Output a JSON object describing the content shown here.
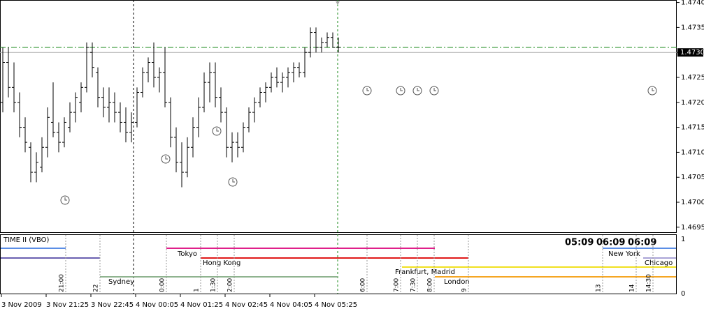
{
  "chart_data": {
    "type": "ohlc",
    "color": "#000000",
    "categories": [
      "3 Nov 2009",
      null,
      null,
      null,
      null,
      null,
      null,
      null,
      "3 Nov 21:25",
      null,
      null,
      null,
      null,
      null,
      null,
      null,
      "3 Nov 22:45",
      null,
      null,
      null,
      null,
      null,
      null,
      null,
      "4 Nov 00:05",
      null,
      null,
      null,
      null,
      null,
      null,
      null,
      "4 Nov 01:25",
      null,
      null,
      null,
      null,
      null,
      null,
      null,
      "4 Nov 02:45",
      null,
      null,
      null,
      null,
      null,
      null,
      null,
      "4 Nov 04:05",
      null,
      null,
      null,
      null,
      null,
      null,
      null,
      "4 Nov 05:25",
      null,
      null,
      null,
      null
    ],
    "open": [
      1.472,
      1.4728,
      1.4723,
      1.472,
      1.4715,
      1.4711,
      1.4706,
      1.4707,
      1.4711,
      1.4716,
      1.4714,
      1.4712,
      1.4715,
      1.4718,
      1.472,
      1.4723,
      1.473,
      1.4726,
      1.4721,
      1.4719,
      1.472,
      1.4718,
      1.4716,
      1.4714,
      1.4716,
      1.4722,
      1.4726,
      1.4728,
      1.4725,
      1.4726,
      1.472,
      1.4713,
      1.4708,
      1.4706,
      1.4711,
      1.4715,
      1.4719,
      1.4724,
      1.4726,
      1.4721,
      1.4718,
      1.4711,
      1.4712,
      1.4711,
      1.4715,
      1.4718,
      1.472,
      1.4722,
      1.4723,
      1.4725,
      1.4724,
      1.4725,
      1.4726,
      1.4727,
      1.4726,
      1.473,
      1.4734,
      1.4731,
      1.4732,
      1.4733,
      1.4731
    ],
    "high": [
      1.4731,
      1.4731,
      1.4728,
      1.4722,
      1.4717,
      1.4712,
      1.471,
      1.4713,
      1.4719,
      1.4724,
      1.4716,
      1.4717,
      1.472,
      1.4722,
      1.4724,
      1.4732,
      1.4732,
      1.4727,
      1.4723,
      1.4723,
      1.4722,
      1.472,
      1.4719,
      1.4718,
      1.4723,
      1.4727,
      1.4729,
      1.4732,
      1.4727,
      1.4731,
      1.4721,
      1.4715,
      1.4712,
      1.4713,
      1.4717,
      1.4721,
      1.4726,
      1.4728,
      1.4728,
      1.4723,
      1.4719,
      1.4714,
      1.4714,
      1.4716,
      1.4719,
      1.4721,
      1.4723,
      1.4724,
      1.4726,
      1.4727,
      1.4726,
      1.4727,
      1.4728,
      1.4728,
      1.4731,
      1.4735,
      1.4735,
      1.4733,
      1.4734,
      1.4734,
      1.4733
    ],
    "low": [
      1.4718,
      1.4721,
      1.4718,
      1.4713,
      1.471,
      1.4704,
      1.4704,
      1.4706,
      1.4709,
      1.4713,
      1.471,
      1.4711,
      1.4714,
      1.4716,
      1.4718,
      1.4722,
      1.4725,
      1.4719,
      1.4717,
      1.4716,
      1.4716,
      1.4714,
      1.4712,
      1.4712,
      1.4715,
      1.4721,
      1.4724,
      1.4723,
      1.4722,
      1.4719,
      1.4711,
      1.4706,
      1.4703,
      1.4705,
      1.4709,
      1.4713,
      1.4718,
      1.472,
      1.4719,
      1.4716,
      1.4709,
      1.4708,
      1.4709,
      1.471,
      1.4714,
      1.4716,
      1.4719,
      1.472,
      1.4722,
      1.4723,
      1.4722,
      1.4723,
      1.4724,
      1.4725,
      1.4725,
      1.4729,
      1.473,
      1.473,
      1.4731,
      1.4731,
      1.473
    ],
    "close": [
      1.4728,
      1.4723,
      1.472,
      1.4715,
      1.4712,
      1.4706,
      1.4708,
      1.4711,
      1.4717,
      1.4714,
      1.4712,
      1.4716,
      1.4718,
      1.4721,
      1.4723,
      1.4731,
      1.4727,
      1.4721,
      1.4719,
      1.472,
      1.4718,
      1.4716,
      1.4714,
      1.4716,
      1.4722,
      1.4726,
      1.4728,
      1.4725,
      1.4726,
      1.472,
      1.4713,
      1.4708,
      1.4706,
      1.4711,
      1.4715,
      1.4719,
      1.4724,
      1.4726,
      1.4721,
      1.4718,
      1.4711,
      1.4712,
      1.4711,
      1.4715,
      1.4718,
      1.472,
      1.4722,
      1.4723,
      1.4725,
      1.4724,
      1.4725,
      1.4726,
      1.4727,
      1.4726,
      1.473,
      1.4734,
      1.4731,
      1.4732,
      1.4733,
      1.4731,
      1.4731
    ],
    "ylim": [
      1.4694,
      1.47405
    ],
    "yticks": [
      {
        "value": 1.474,
        "label": "1.4740"
      },
      1.4735,
      {
        "value": 1.473,
        "label": "1.4730"
      },
      1.4725,
      {
        "value": 1.472,
        "label": "1.4720"
      },
      1.4715,
      {
        "value": 1.471,
        "label": "1.4710"
      },
      1.4705,
      {
        "value": 1.47,
        "label": "1.4700"
      },
      1.4695
    ],
    "bid": {
      "value": 1.473,
      "label": "1.4730"
    },
    "ask": 1.4731
  },
  "indicator": {
    "title": "TIME II (VBO)",
    "clocks": [
      "05:09",
      "06:09",
      "06:09"
    ],
    "scale_top": "1",
    "scale_bottom": "0",
    "sessions": {
      "sydney": "Sydney",
      "tokyo": "Tokyo",
      "hong_kong": "Hong Kong",
      "frankfurt": "Frankfurt, Madrid",
      "london": "London",
      "new_york": "New York",
      "chicago": "Chicago"
    },
    "hours": [
      "21:00",
      "22",
      "0:00",
      "1",
      "1:30",
      "2:00",
      "6:00",
      "7:00",
      "7:30",
      "8:00",
      "9",
      "13",
      "14",
      "14:30"
    ]
  }
}
